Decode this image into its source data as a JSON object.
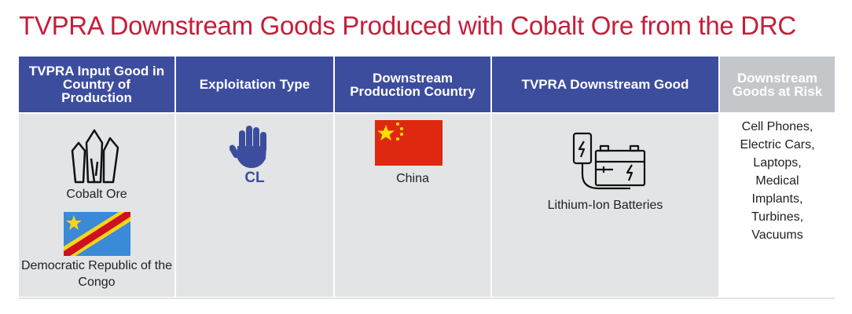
{
  "title": "TVPRA Downstream Goods Produced with Cobalt Ore from the DRC",
  "table": {
    "headers": [
      "TVPRA Input Good in Country of Production",
      "Exploitation Type",
      "Downstream Production Country",
      "TVPRA Downstream Good",
      "Downstream Goods at Risk"
    ],
    "input_good": "Cobalt Ore",
    "input_country": "Democratic Republic of the Congo",
    "exploitation_type": "CL",
    "production_country": "China",
    "downstream_good": "Lithium-Ion Batteries",
    "goods_at_risk": [
      "Cell Phones,",
      "Electric Cars,",
      "Laptops,",
      "Medical",
      "Implants,",
      "Turbines,",
      "Vacuums"
    ]
  }
}
